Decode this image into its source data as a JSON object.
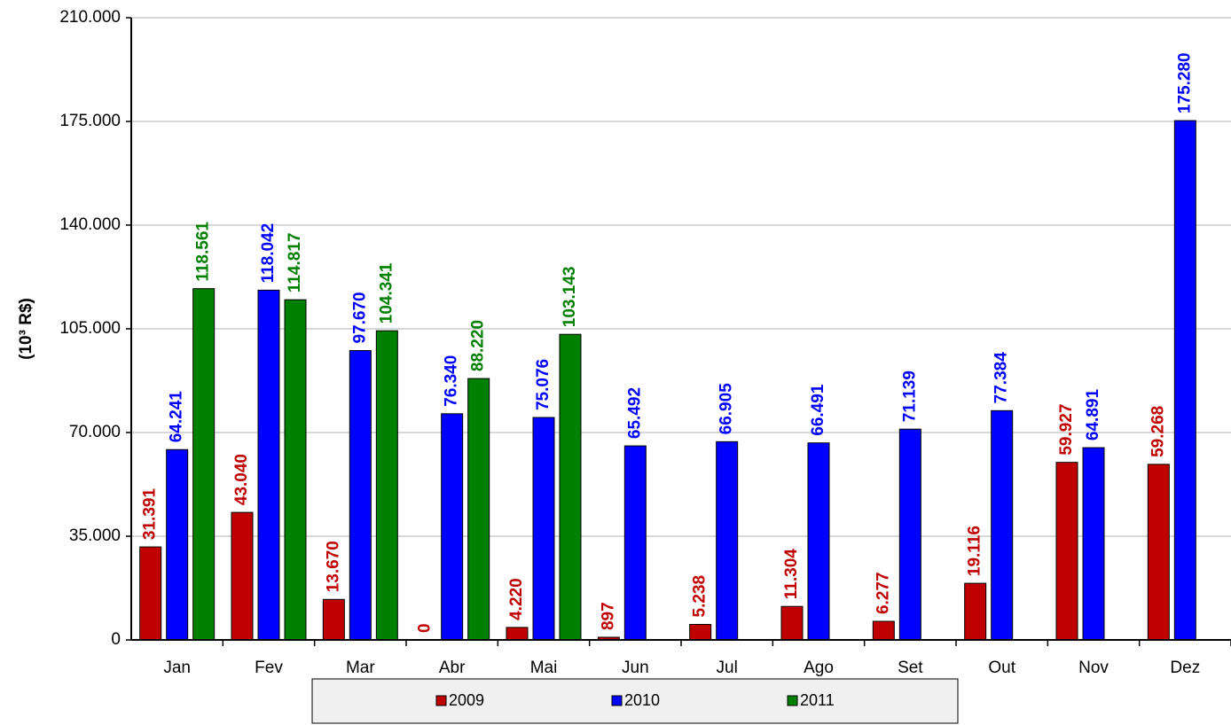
{
  "chart_data": {
    "type": "bar",
    "y_label": "(10³ R$)",
    "categories": [
      "Jan",
      "Fev",
      "Mar",
      "Abr",
      "Mai",
      "Jun",
      "Jul",
      "Ago",
      "Set",
      "Out",
      "Nov",
      "Dez"
    ],
    "series": [
      {
        "name": "2009",
        "color": "#c00000",
        "values": [
          31391,
          43040,
          13670,
          0,
          4220,
          897,
          5238,
          11304,
          6277,
          19116,
          59927,
          59268
        ],
        "value_labels": [
          "31.391",
          "43.040",
          "13.670",
          "0",
          "4.220",
          "897",
          "5.238",
          "11.304",
          "6.277",
          "19.116",
          "59.927",
          "59.268"
        ]
      },
      {
        "name": "2010",
        "color": "#0000ff",
        "values": [
          64241,
          118042,
          97670,
          76340,
          75076,
          65492,
          66905,
          66491,
          71139,
          77384,
          64891,
          175280
        ],
        "value_labels": [
          "64.241",
          "118.042",
          "97.670",
          "76.340",
          "75.076",
          "65.492",
          "66.905",
          "66.491",
          "71.139",
          "77.384",
          "64.891",
          "175.280"
        ]
      },
      {
        "name": "2011",
        "color": "#008000",
        "values": [
          118561,
          114817,
          104341,
          88220,
          103143,
          null,
          null,
          null,
          null,
          null,
          null,
          null
        ],
        "value_labels": [
          "118.561",
          "114.817",
          "104.341",
          "88.220",
          "103.143",
          null,
          null,
          null,
          null,
          null,
          null,
          null
        ]
      }
    ],
    "ylim": [
      0,
      210000
    ],
    "yticks": [
      {
        "value": 0,
        "label": "0"
      },
      {
        "value": 35000,
        "label": "35.000"
      },
      {
        "value": 70000,
        "label": "70.000"
      },
      {
        "value": 105000,
        "label": "105.000"
      },
      {
        "value": 140000,
        "label": "140.000"
      },
      {
        "value": 175000,
        "label": "175.000"
      },
      {
        "value": 210000,
        "label": "210.000"
      }
    ],
    "grid": true
  }
}
